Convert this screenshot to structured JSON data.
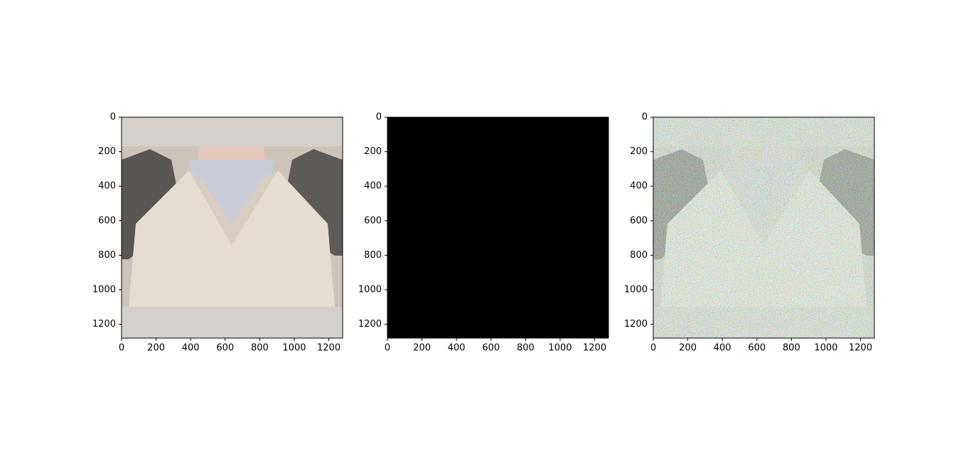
{
  "chart_data": [
    {
      "type": "image",
      "xlim": [
        0,
        1280
      ],
      "ylim": [
        1280,
        0
      ],
      "xticks": [
        0,
        200,
        400,
        600,
        800,
        1000,
        1200
      ],
      "yticks": [
        0,
        200,
        400,
        600,
        800,
        1000,
        1200
      ]
    },
    {
      "type": "image",
      "xlim": [
        0,
        1280
      ],
      "ylim": [
        1280,
        0
      ],
      "xticks": [
        0,
        200,
        400,
        600,
        800,
        1000,
        1200
      ],
      "yticks": [
        0,
        200,
        400,
        600,
        800,
        1000,
        1200
      ]
    },
    {
      "type": "image",
      "xlim": [
        0,
        1280
      ],
      "ylim": [
        1280,
        0
      ],
      "xticks": [
        0,
        200,
        400,
        600,
        800,
        1000,
        1200
      ],
      "yticks": [
        0,
        200,
        400,
        600,
        800,
        1000,
        1200
      ]
    }
  ]
}
